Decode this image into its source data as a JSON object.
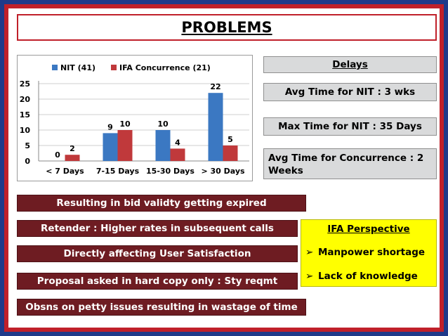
{
  "slide": {
    "title": "PROBLEMS",
    "colors": {
      "frame_blue": "#1f3a8a",
      "frame_red": "#c0202a",
      "box_maroon": "#6e1c22",
      "box_gray": "#d9dadb",
      "box_yellow": "#ffff00"
    }
  },
  "delays": {
    "heading": "Delays",
    "avg_nit": "Avg Time for NIT : 3 wks",
    "max_nit": "Max Time for NIT : 35 Days",
    "avg_concurrence": "Avg Time for Concurrence : 2 Weeks"
  },
  "issues": [
    "Resulting in bid validty getting expired",
    "Retender : Higher rates in subsequent calls",
    "Directly affecting User Satisfaction",
    "Proposal asked in hard copy only : Sty reqmt",
    "Obsns on petty issues resulting in wastage of time"
  ],
  "ifa": {
    "heading": "IFA Perspective",
    "bullet_icon": "arrow-bullet-icon",
    "items": [
      "Manpower shortage",
      "Lack of knowledge"
    ]
  },
  "chart_data": {
    "type": "bar",
    "categories": [
      "< 7 Days",
      "7-15 Days",
      "15-30 Days",
      "> 30 Days"
    ],
    "series": [
      {
        "name": "NIT (41)",
        "values": [
          0,
          9,
          10,
          22
        ],
        "color": "#3b78c2"
      },
      {
        "name": "IFA Concurrence (21)",
        "values": [
          2,
          10,
          4,
          5
        ],
        "color": "#c0393b"
      }
    ],
    "ylim": [
      0,
      25
    ],
    "yticks": [
      0,
      5,
      10,
      15,
      20,
      25
    ],
    "grid": true,
    "legend_position": "top",
    "data_labels": true,
    "title": "",
    "xlabel": "",
    "ylabel": ""
  }
}
